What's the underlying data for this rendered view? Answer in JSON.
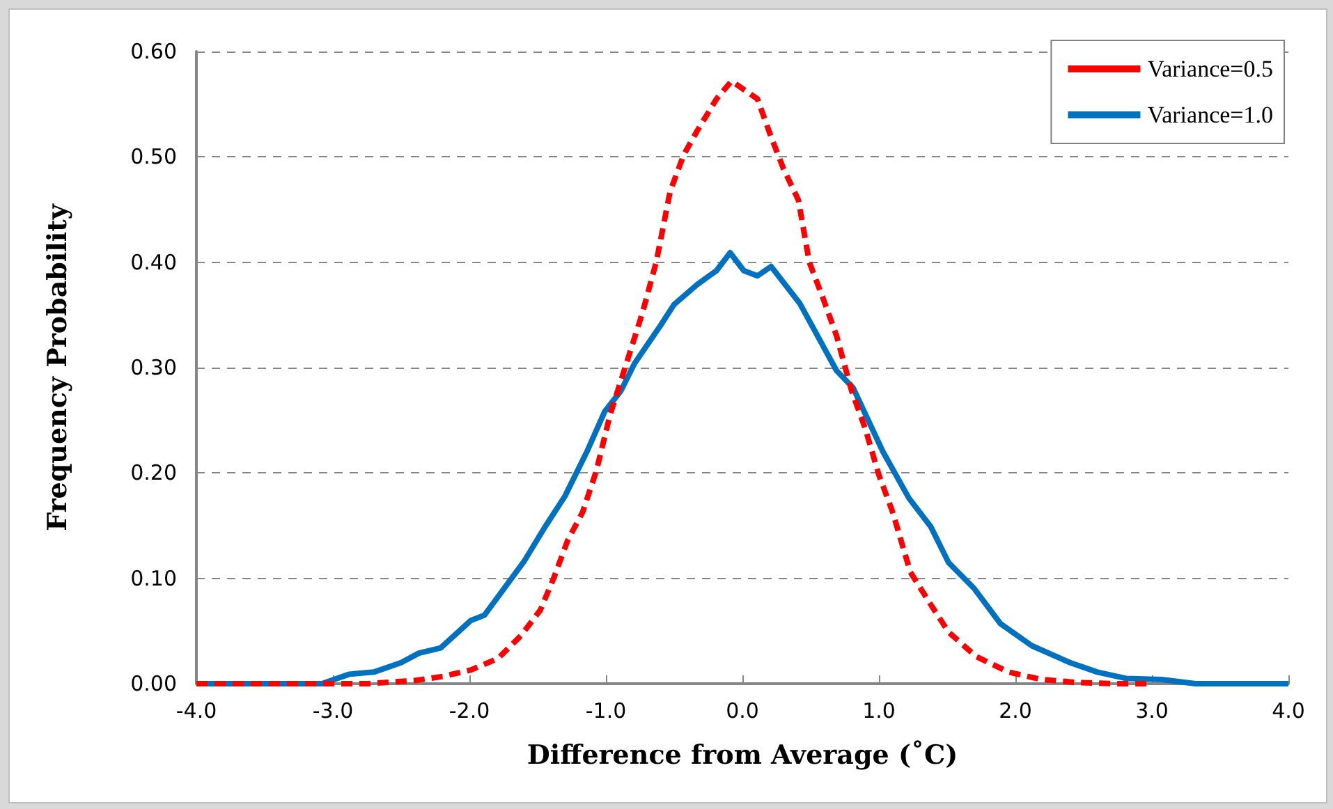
{
  "chart_data": {
    "type": "line",
    "xlabel": "Difference from Average (˚C)",
    "ylabel": "Frequency Probability",
    "xlim": [
      -4,
      4
    ],
    "xticks": [
      {
        "value": -4,
        "label": "-4.0"
      },
      {
        "value": -3,
        "label": "-3.0"
      },
      {
        "value": -2,
        "label": "-2.0"
      },
      {
        "value": -1,
        "label": "-1.0"
      },
      {
        "value": 0,
        "label": "0.0"
      },
      {
        "value": 1,
        "label": "1.0"
      },
      {
        "value": 2,
        "label": "2.0"
      },
      {
        "value": 3,
        "label": "3.0"
      },
      {
        "value": 4,
        "label": "4.0"
      }
    ],
    "ylim": [
      0,
      0.6
    ],
    "yticks": [
      {
        "value": 0,
        "label": "0.00"
      },
      {
        "value": 0.1,
        "label": "0.10"
      },
      {
        "value": 0.2,
        "label": "0.20"
      },
      {
        "value": 0.3,
        "label": "0.30"
      },
      {
        "value": 0.4,
        "label": "0.40"
      },
      {
        "value": 0.5,
        "label": "0.50"
      },
      {
        "value": 0.6,
        "label": "0.60"
      }
    ],
    "grid": "y",
    "legend": "top right",
    "marker": "none",
    "series": [
      {
        "name": "Variance=0.5",
        "color": "#ff0000",
        "line_style": "dashed",
        "x": [
          -4,
          -3.01,
          -2.74,
          -2.4,
          -2.19,
          -1.99,
          -1.79,
          -1.62,
          -1.48,
          -1.38,
          -1.28,
          -1.17,
          -1.07,
          -0.97,
          -0.84,
          -0.73,
          -0.63,
          -0.53,
          -0.43,
          -0.33,
          -0.19,
          -0.08,
          0.11,
          0.21,
          0.3,
          0.41,
          0.49,
          0.59,
          0.69,
          0.8,
          0.9,
          1.0,
          1.1,
          1.23,
          1.38,
          1.51,
          1.71,
          1.95,
          2.19,
          2.46,
          2.73,
          3.0
        ],
        "values": [
          0,
          0,
          0,
          0.003,
          0.007,
          0.013,
          0.024,
          0.046,
          0.07,
          0.101,
          0.136,
          0.163,
          0.202,
          0.255,
          0.308,
          0.353,
          0.401,
          0.467,
          0.502,
          0.525,
          0.555,
          0.572,
          0.555,
          0.519,
          0.489,
          0.459,
          0.4,
          0.366,
          0.33,
          0.278,
          0.242,
          0.198,
          0.163,
          0.106,
          0.075,
          0.049,
          0.026,
          0.011,
          0.004,
          0.001,
          0,
          0
        ]
      },
      {
        "name": "Variance=1.0",
        "color": "#0070c0",
        "line_style": "solid",
        "x": [
          -4,
          -3.08,
          -2.88,
          -2.7,
          -2.5,
          -2.37,
          -2.21,
          -1.99,
          -1.89,
          -1.6,
          -1.45,
          -1.3,
          -1.14,
          -1.01,
          -0.89,
          -0.79,
          -0.6,
          -0.5,
          -0.33,
          -0.19,
          -0.09,
          0.01,
          0.11,
          0.21,
          0.42,
          0.69,
          0.81,
          1.03,
          1.22,
          1.38,
          1.51,
          1.7,
          1.89,
          2.12,
          2.4,
          2.6,
          2.81,
          3.07,
          3.32,
          4
        ],
        "values": [
          0,
          0,
          0.009,
          0.011,
          0.02,
          0.029,
          0.034,
          0.06,
          0.065,
          0.116,
          0.148,
          0.178,
          0.22,
          0.258,
          0.278,
          0.304,
          0.34,
          0.36,
          0.379,
          0.392,
          0.409,
          0.392,
          0.387,
          0.396,
          0.361,
          0.297,
          0.281,
          0.22,
          0.176,
          0.149,
          0.115,
          0.09,
          0.057,
          0.036,
          0.02,
          0.011,
          0.005,
          0.004,
          0,
          0
        ]
      }
    ]
  }
}
